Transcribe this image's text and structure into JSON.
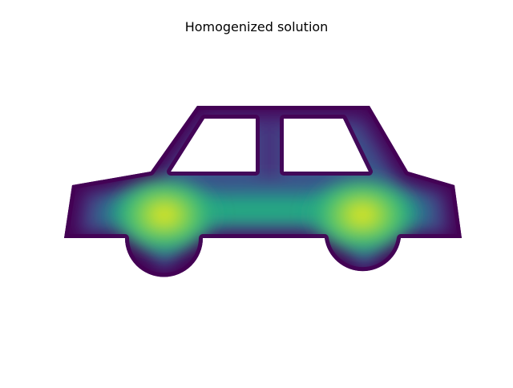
{
  "chart_data": {
    "type": "heatmap",
    "title": "Homogenized solution",
    "xlabel": "",
    "ylabel": "",
    "axes_visible": false,
    "grid": false,
    "legend": "none",
    "colormap": "viridis",
    "shape": "car",
    "peak_locations": [
      "front-wheel",
      "rear-wheel"
    ],
    "colors": {
      "low": "#440154",
      "mid_low": "#3b528b",
      "mid": "#21918c",
      "mid_high": "#5ec962",
      "high": "#fde725"
    }
  }
}
